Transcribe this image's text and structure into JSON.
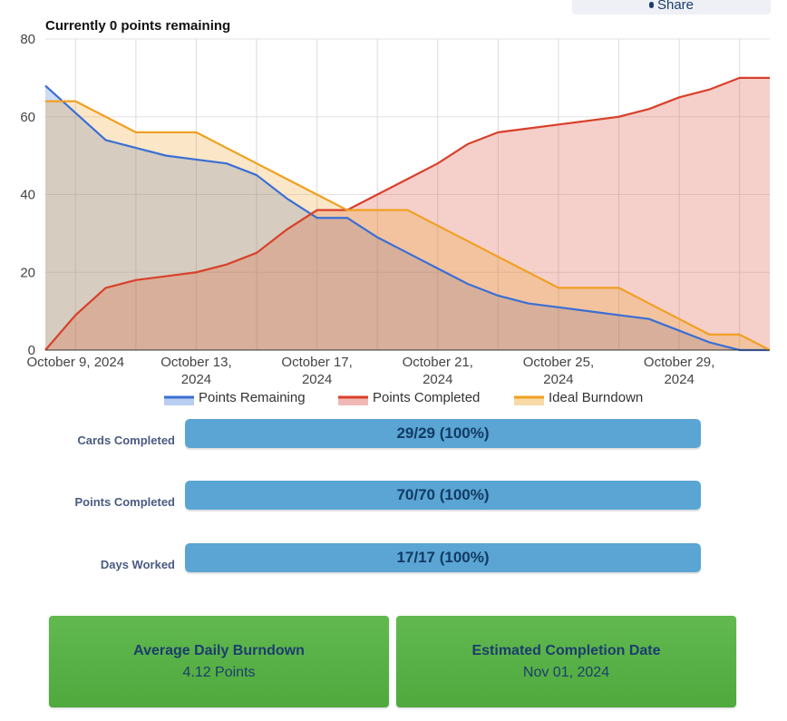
{
  "share": {
    "label": "Share"
  },
  "headline": "Currently 0 points remaining",
  "chart_data": {
    "type": "area",
    "title": "",
    "xlabel": "",
    "ylabel": "",
    "ylim": [
      0,
      80
    ],
    "yticks": [
      0,
      20,
      40,
      60,
      80
    ],
    "grid": true,
    "legend_position": "bottom",
    "x_tick_labels": [
      {
        "day": 1,
        "lines": [
          "October 9, 2024"
        ]
      },
      {
        "day": 5,
        "lines": [
          "October 13,",
          "2024"
        ]
      },
      {
        "day": 9,
        "lines": [
          "October 17,",
          "2024"
        ]
      },
      {
        "day": 13,
        "lines": [
          "October 21,",
          "2024"
        ]
      },
      {
        "day": 17,
        "lines": [
          "October 25,",
          "2024"
        ]
      },
      {
        "day": 21,
        "lines": [
          "October 29,",
          "2024"
        ]
      }
    ],
    "x": [
      "2024-10-08",
      "2024-10-09",
      "2024-10-10",
      "2024-10-11",
      "2024-10-12",
      "2024-10-13",
      "2024-10-14",
      "2024-10-15",
      "2024-10-16",
      "2024-10-17",
      "2024-10-18",
      "2024-10-19",
      "2024-10-20",
      "2024-10-21",
      "2024-10-22",
      "2024-10-23",
      "2024-10-24",
      "2024-10-25",
      "2024-10-26",
      "2024-10-27",
      "2024-10-28",
      "2024-10-29",
      "2024-10-30",
      "2024-10-31",
      "2024-11-01"
    ],
    "series": [
      {
        "name": "Points Remaining",
        "color": "#3a6fd4",
        "fill": "#b8cdf0",
        "values": [
          68,
          61,
          54,
          52,
          50,
          49,
          48,
          45,
          39,
          34,
          34,
          29,
          25,
          21,
          17,
          14,
          12,
          11,
          10,
          9,
          8,
          5,
          2,
          0,
          0
        ]
      },
      {
        "name": "Points Completed",
        "color": "#d9402a",
        "fill": "#f0b9b5",
        "values": [
          0,
          9,
          16,
          18,
          19,
          20,
          22,
          25,
          31,
          36,
          36,
          40,
          44,
          48,
          53,
          56,
          57,
          58,
          59,
          60,
          62,
          65,
          67,
          70,
          70
        ]
      },
      {
        "name": "Ideal Burndown",
        "color": "#f0a022",
        "fill": "#f8d9a8",
        "values": [
          64,
          64,
          60,
          56,
          56,
          56,
          52,
          48,
          44,
          40,
          36,
          36,
          36,
          32,
          28,
          24,
          20,
          16,
          16,
          16,
          12,
          8,
          4,
          4,
          0
        ]
      }
    ]
  },
  "stats": [
    {
      "label": "Cards Completed",
      "text": "29/29 (100%)",
      "fraction": 1.0
    },
    {
      "label": "Points Completed",
      "text": "70/70 (100%)",
      "fraction": 1.0
    },
    {
      "label": "Days Worked",
      "text": "17/17 (100%)",
      "fraction": 1.0
    }
  ],
  "cards": [
    {
      "title": "Average Daily Burndown",
      "value": "4.12 Points"
    },
    {
      "title": "Estimated Completion Date",
      "value": "Nov 01, 2024"
    }
  ]
}
